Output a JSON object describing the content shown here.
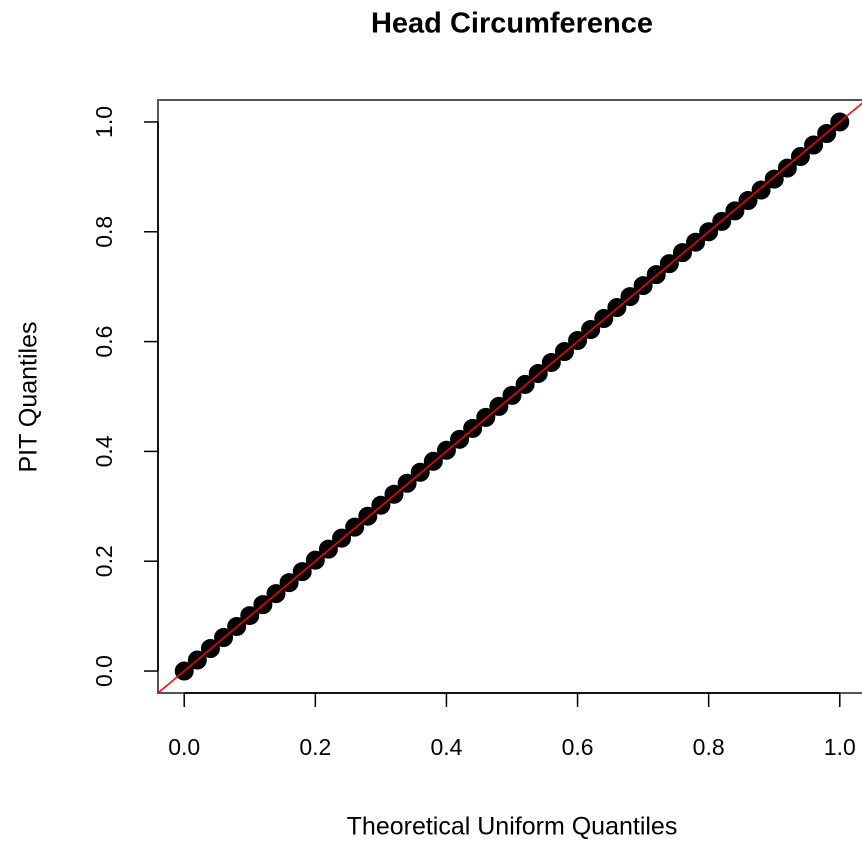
{
  "chart_data": {
    "type": "scatter",
    "title": "Head Circumference",
    "x_label": "Theoretical Uniform Quantiles",
    "y_label": "PIT Quantiles",
    "color": "#000000",
    "x": [
      0.0,
      0.02,
      0.04,
      0.06,
      0.08,
      0.1,
      0.12,
      0.14,
      0.16,
      0.18,
      0.2,
      0.22,
      0.24,
      0.26,
      0.28,
      0.3,
      0.32,
      0.34,
      0.36,
      0.38,
      0.4,
      0.42,
      0.44,
      0.46,
      0.48,
      0.5,
      0.52,
      0.54,
      0.56,
      0.58,
      0.6,
      0.62,
      0.64,
      0.66,
      0.68,
      0.7,
      0.72,
      0.74,
      0.76,
      0.78,
      0.8,
      0.82,
      0.84,
      0.86,
      0.88,
      0.9,
      0.92,
      0.94,
      0.96,
      0.98,
      1.0
    ],
    "values": [
      0.0,
      0.02,
      0.041,
      0.061,
      0.081,
      0.101,
      0.121,
      0.141,
      0.161,
      0.181,
      0.202,
      0.222,
      0.242,
      0.262,
      0.282,
      0.302,
      0.322,
      0.342,
      0.362,
      0.382,
      0.402,
      0.422,
      0.442,
      0.462,
      0.482,
      0.502,
      0.522,
      0.542,
      0.562,
      0.582,
      0.602,
      0.622,
      0.642,
      0.662,
      0.682,
      0.702,
      0.722,
      0.742,
      0.762,
      0.781,
      0.8,
      0.819,
      0.838,
      0.857,
      0.876,
      0.896,
      0.916,
      0.937,
      0.958,
      0.979,
      1.0
    ],
    "xlim": [
      -0.04,
      1.04
    ],
    "ylim": [
      -0.04,
      1.04
    ],
    "xticks": [
      {
        "value": 0,
        "label": "0.0"
      },
      {
        "value": 0.2,
        "label": "0.2"
      },
      {
        "value": 0.4,
        "label": "0.4"
      },
      {
        "value": 0.6,
        "label": "0.6"
      },
      {
        "value": 0.8,
        "label": "0.8"
      },
      {
        "value": 1,
        "label": "1.0"
      }
    ],
    "yticks": [
      {
        "value": 0,
        "label": "0.0"
      },
      {
        "value": 0.2,
        "label": "0.2"
      },
      {
        "value": 0.4,
        "label": "0.4"
      },
      {
        "value": 0.6,
        "label": "0.6"
      },
      {
        "value": 0.8,
        "label": "0.8"
      },
      {
        "value": 1,
        "label": "1.0"
      }
    ],
    "reference_line": {
      "intercept": 0,
      "slope": 1,
      "color": "#ff0000"
    }
  }
}
